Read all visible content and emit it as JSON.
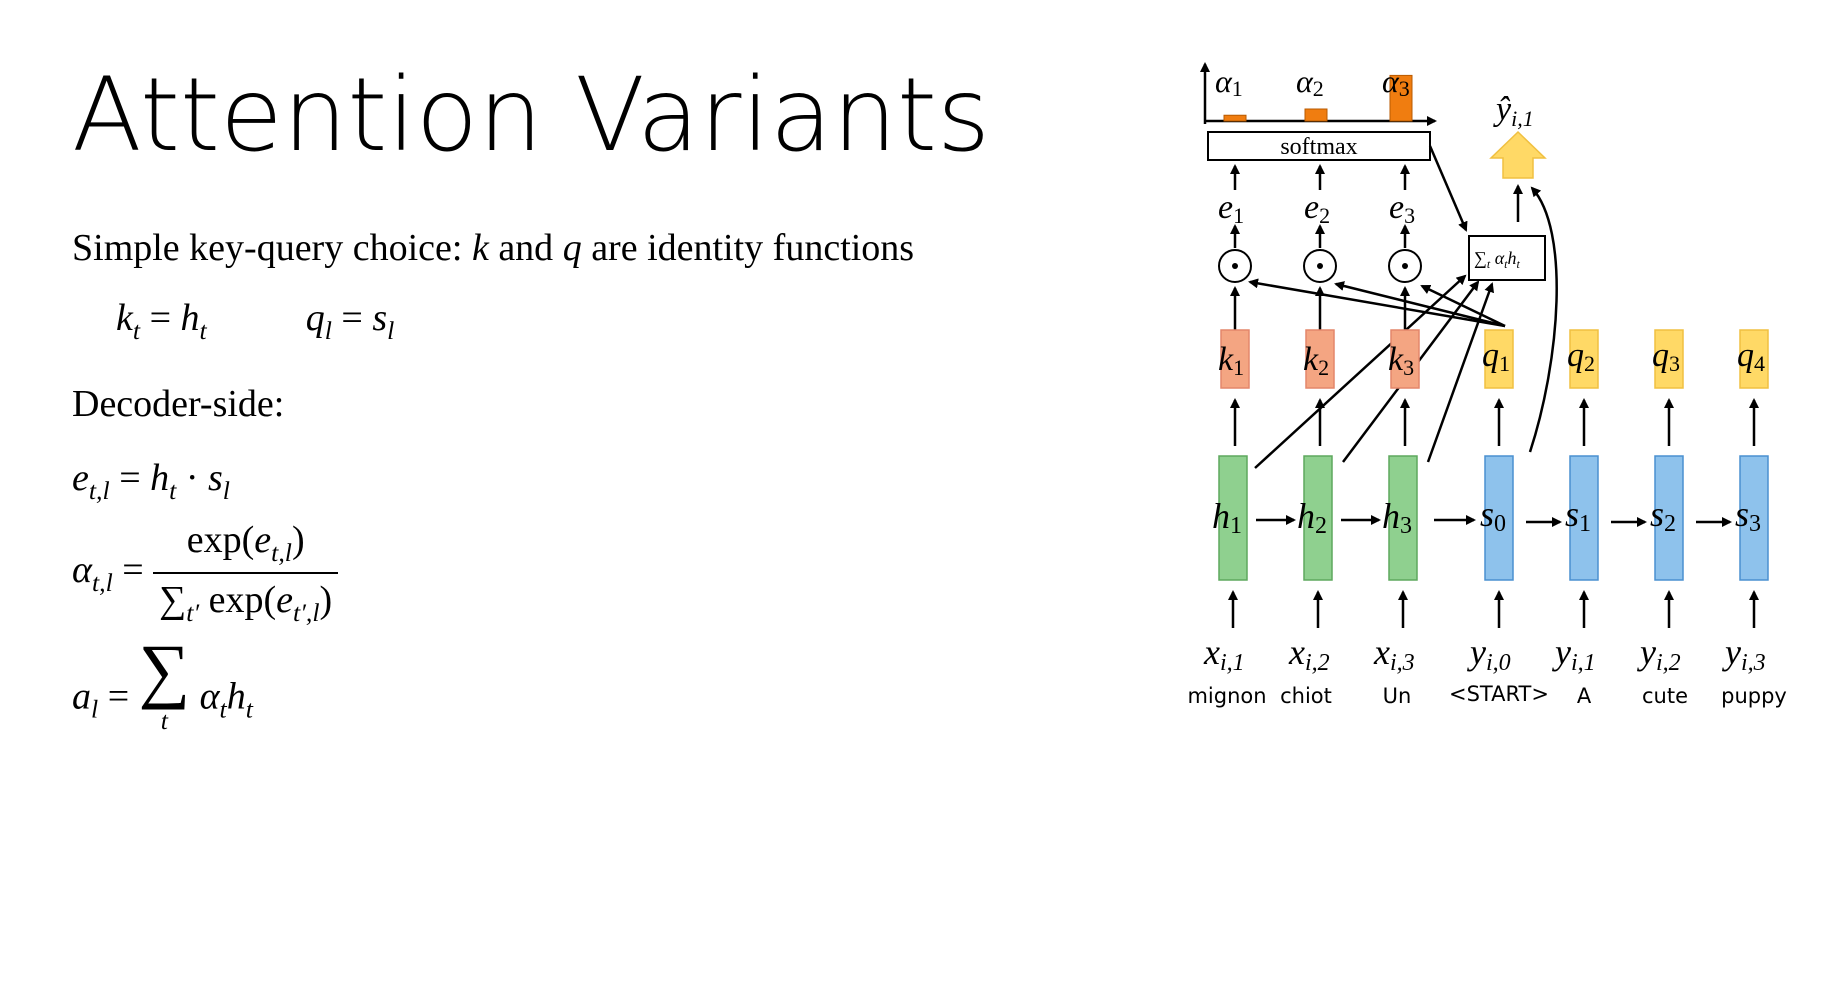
{
  "slide": {
    "title": "Attention Variants",
    "intro": "Simple key-query choice:",
    "intro_k": "k",
    "intro_and": "and",
    "intro_q": "q",
    "intro_rest": "are identity functions",
    "decoder_side": "Decoder-side:"
  },
  "diagram": {
    "colors": {
      "key": "#f4a582",
      "key_border": "#e4866a",
      "query": "#ffd966",
      "query_border": "#f0c040",
      "encoder": "#8fd08f",
      "encoder_border": "#5ea85e",
      "decoder": "#8ec2ec",
      "decoder_border": "#4a90d0",
      "bar": "#f07d10",
      "output_arrow": "#ffd966"
    },
    "softmax_label": "softmax",
    "alpha_bar_values": [
      0.12,
      0.25,
      0.95
    ],
    "encoder_words": [
      "mignon",
      "chiot",
      "Un"
    ],
    "decoder_words": [
      "<START>",
      "A",
      "cute",
      "puppy"
    ]
  }
}
